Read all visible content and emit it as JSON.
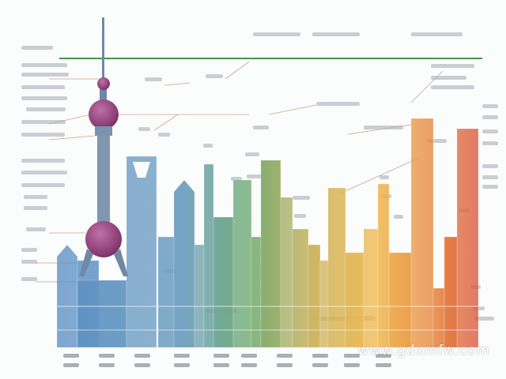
{
  "illustration": {
    "subject": "skyline-infographic",
    "colors": {
      "blue": "#5b8fc4",
      "green": "#6aa86e",
      "olive": "#a7a55a",
      "yellow": "#f0b94e",
      "orange": "#e7873c",
      "red": "#d9513a",
      "tower_sphere": "#9a3f78",
      "header_line": "#3a9a4a"
    }
  },
  "watermark": "www.gdxmfw.com"
}
